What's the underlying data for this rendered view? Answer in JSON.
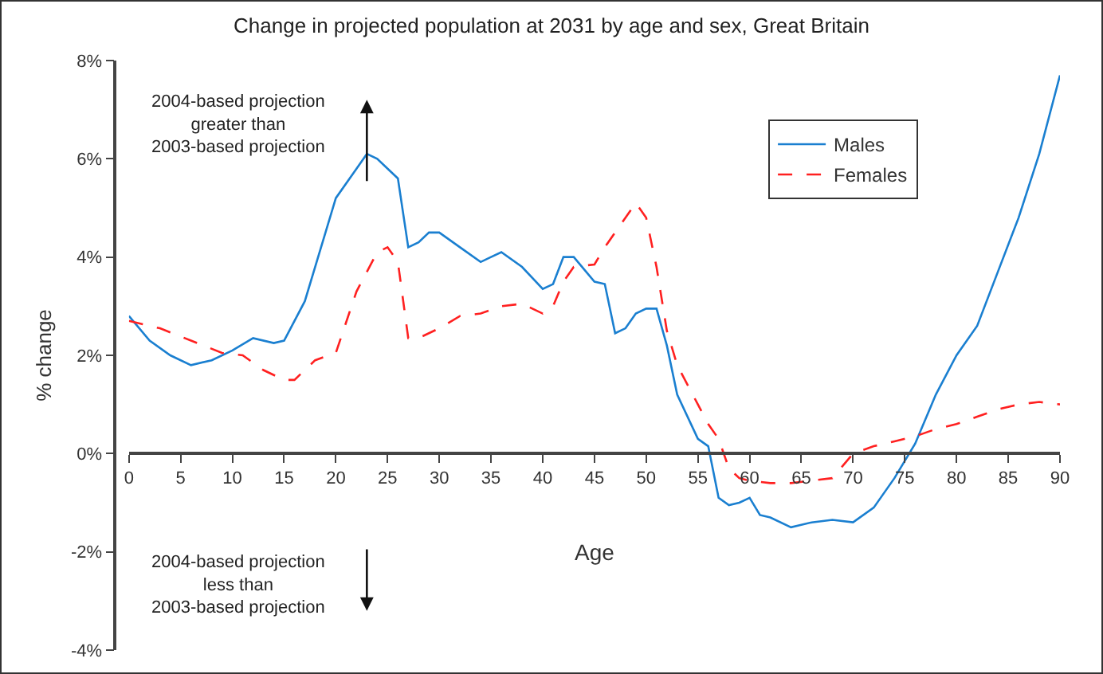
{
  "chart_data": {
    "type": "line",
    "title": "Change in projected population at 2031 by age and sex, Great Britain",
    "xlabel": "Age",
    "ylabel": "% change",
    "xlim": [
      0,
      90
    ],
    "xticks": [
      0,
      5,
      10,
      15,
      20,
      25,
      30,
      35,
      40,
      45,
      50,
      55,
      60,
      65,
      70,
      75,
      80,
      85,
      90
    ],
    "ylim": [
      -4,
      8
    ],
    "yticks": [
      {
        "value": -4,
        "label": "-4%"
      },
      {
        "value": -2,
        "label": "-2%"
      },
      {
        "value": 0,
        "label": "0%"
      },
      {
        "value": 2,
        "label": "2%"
      },
      {
        "value": 4,
        "label": "4%"
      },
      {
        "value": 6,
        "label": "6%"
      },
      {
        "value": 8,
        "label": "8%"
      }
    ],
    "grid": false,
    "legend": "top right",
    "marker": "none",
    "annotations": [
      "2004-based projection\ngreater than\n2003-based projection",
      "2004-based projection\nless than\n2003-based projection"
    ],
    "series": [
      {
        "name": "Males",
        "color": "#1a7fd0",
        "line_style": "solid",
        "x": [
          0,
          2,
          4,
          6,
          8,
          10,
          12,
          14,
          15,
          17,
          19,
          20,
          22,
          23,
          24,
          26,
          27,
          28,
          29,
          30,
          32,
          34,
          35,
          36,
          38,
          40,
          41,
          42,
          43,
          45,
          46,
          47,
          48,
          49,
          50,
          51,
          52,
          53,
          55,
          56,
          57,
          58,
          59,
          60,
          61,
          62,
          64,
          66,
          68,
          70,
          72,
          74,
          76,
          78,
          80,
          82,
          84,
          86,
          88,
          90
        ],
        "values": [
          2.8,
          2.3,
          2.0,
          1.8,
          1.9,
          2.1,
          2.35,
          2.25,
          2.3,
          3.1,
          4.5,
          5.2,
          5.8,
          6.1,
          6.0,
          5.6,
          4.2,
          4.3,
          4.5,
          4.5,
          4.2,
          3.9,
          4.0,
          4.1,
          3.8,
          3.35,
          3.45,
          4.0,
          4.0,
          3.5,
          3.45,
          2.45,
          2.55,
          2.85,
          2.95,
          2.95,
          2.2,
          1.2,
          0.3,
          0.15,
          -0.9,
          -1.05,
          -1.0,
          -0.9,
          -1.25,
          -1.3,
          -1.5,
          -1.4,
          -1.35,
          -1.4,
          -1.1,
          -0.5,
          0.2,
          1.2,
          2.0,
          2.6,
          3.7,
          4.8,
          6.1,
          7.7
        ]
      },
      {
        "name": "Females",
        "color": "#ff2020",
        "line_style": "dashed",
        "x": [
          0,
          3,
          6,
          9,
          11,
          13,
          15,
          16,
          18,
          20,
          22,
          24,
          25,
          26,
          27,
          28,
          30,
          32,
          34,
          36,
          38,
          40,
          41,
          42,
          43,
          45,
          46,
          48,
          49,
          50,
          51,
          52,
          53,
          55,
          56,
          57,
          58,
          59,
          60,
          62,
          64,
          66,
          68,
          70,
          72,
          74,
          76,
          78,
          80,
          82,
          84,
          86,
          88,
          90
        ],
        "values": [
          2.7,
          2.55,
          2.3,
          2.05,
          2.0,
          1.7,
          1.5,
          1.5,
          1.9,
          2.05,
          3.3,
          4.1,
          4.2,
          3.9,
          2.35,
          2.35,
          2.55,
          2.8,
          2.85,
          3.0,
          3.05,
          2.85,
          3.0,
          3.5,
          3.8,
          3.85,
          4.2,
          4.8,
          5.1,
          4.8,
          3.8,
          2.5,
          1.8,
          1.0,
          0.6,
          0.3,
          -0.3,
          -0.5,
          -0.55,
          -0.6,
          -0.6,
          -0.55,
          -0.5,
          0.0,
          0.15,
          0.25,
          0.35,
          0.5,
          0.6,
          0.75,
          0.9,
          1.0,
          1.05,
          1.0
        ]
      }
    ]
  }
}
